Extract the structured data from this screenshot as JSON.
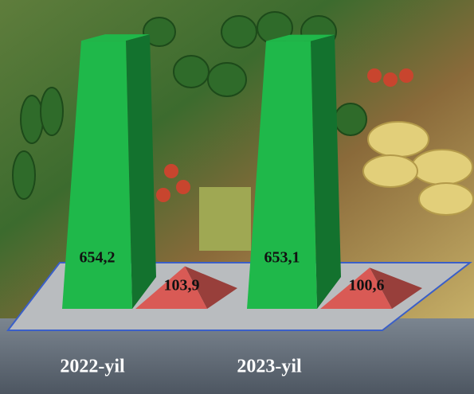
{
  "chart_data": {
    "type": "bar",
    "categories": [
      "2022-yil",
      "2023-yil"
    ],
    "series": [
      {
        "color": "#1fb84a",
        "values": [
          654.2,
          653.1
        ],
        "value_labels": [
          "654,2",
          "653,1"
        ]
      },
      {
        "color": "#d95a55",
        "values": [
          103.9,
          100.6
        ],
        "value_labels": [
          "103,9",
          "100,6"
        ]
      }
    ]
  }
}
